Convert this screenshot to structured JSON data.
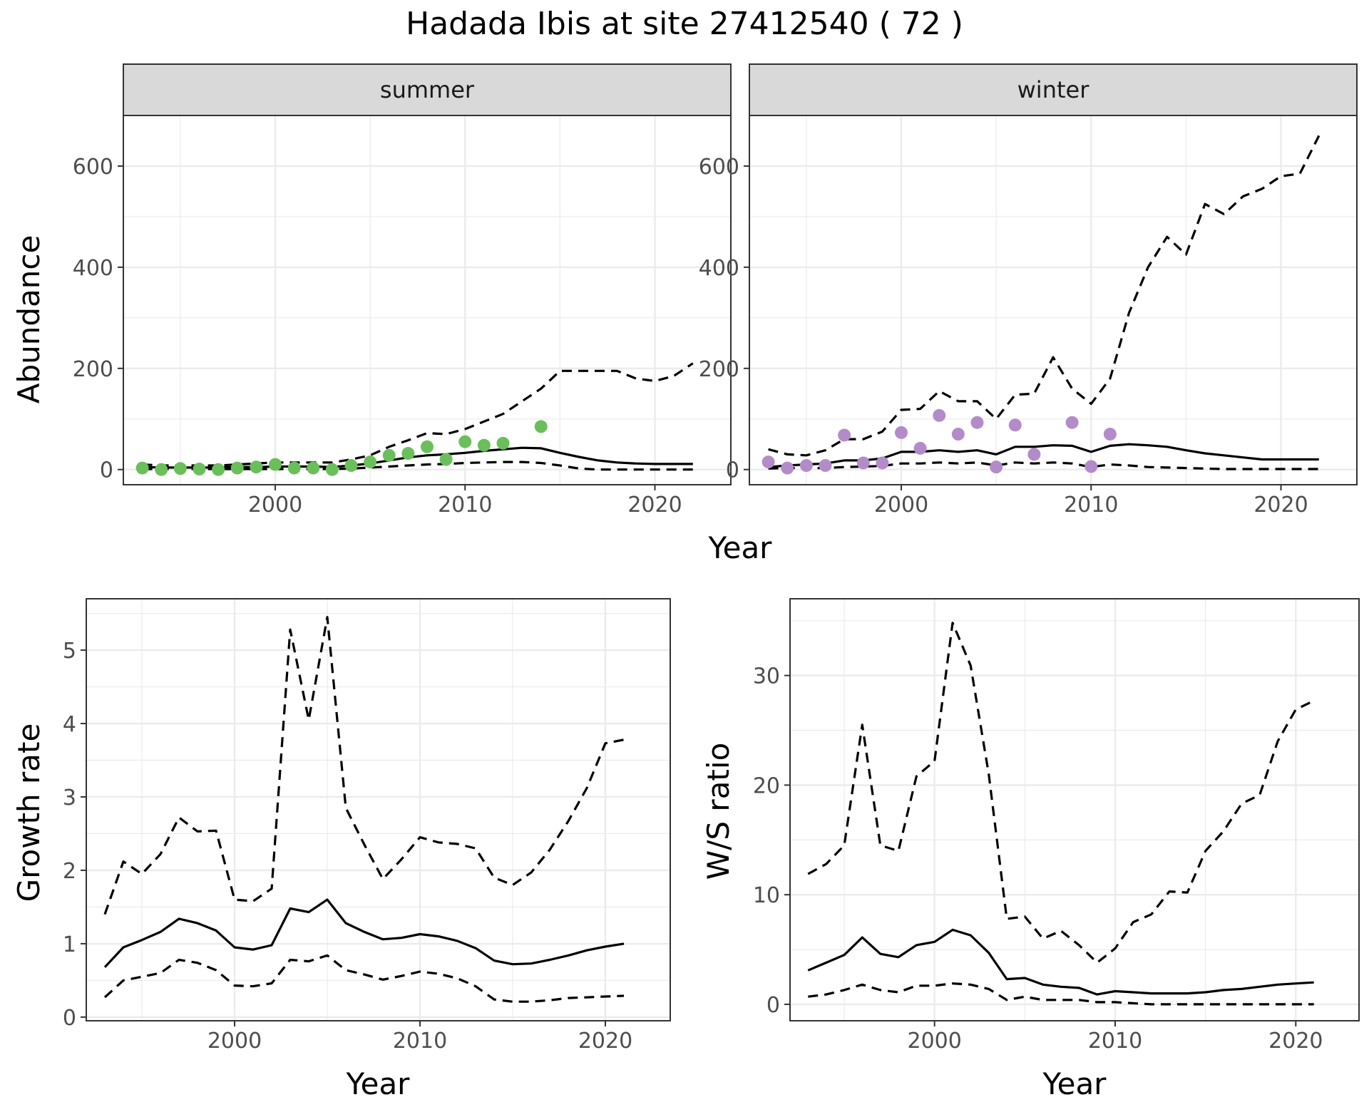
{
  "figure": {
    "title": "Hadada Ibis at site 27412540 ( 72 )"
  },
  "chart_data": [
    {
      "type": "line",
      "panel": "summer",
      "xlabel": "Year",
      "ylabel": "Abundance",
      "xlim": [
        1992,
        2024
      ],
      "ylim": [
        -30,
        700
      ],
      "x_ticks": [
        2000,
        2010,
        2020
      ],
      "y_ticks": [
        0,
        200,
        400,
        600
      ],
      "grid": true,
      "legend": "none",
      "point_color": "#6abf5a",
      "points": {
        "x": [
          1993,
          1994,
          1995,
          1996,
          1997,
          1998,
          1999,
          2000,
          2001,
          2002,
          2003,
          2004,
          2005,
          2006,
          2007,
          2008,
          2009,
          2010,
          2011,
          2012,
          2014
        ],
        "y": [
          3,
          0,
          2,
          1,
          0,
          3,
          5,
          10,
          3,
          3,
          0,
          8,
          15,
          28,
          32,
          45,
          20,
          55,
          48,
          52,
          85
        ]
      },
      "series": [
        {
          "style": "solid",
          "x": [
            1993,
            1994,
            1995,
            1996,
            1997,
            1998,
            1999,
            2000,
            2001,
            2002,
            2003,
            2004,
            2005,
            2006,
            2007,
            2008,
            2009,
            2010,
            2011,
            2012,
            2013,
            2014,
            2015,
            2016,
            2017,
            2018,
            2019,
            2020,
            2021,
            2022
          ],
          "y": [
            5,
            4,
            4,
            4,
            4,
            5,
            5,
            6,
            6,
            6,
            5,
            8,
            12,
            18,
            24,
            28,
            30,
            33,
            37,
            40,
            43,
            42,
            33,
            25,
            18,
            14,
            12,
            11,
            11,
            11
          ]
        },
        {
          "style": "dashed",
          "x": [
            1993,
            1994,
            1995,
            1996,
            1997,
            1998,
            1999,
            2000,
            2001,
            2002,
            2003,
            2004,
            2005,
            2006,
            2007,
            2008,
            2009,
            2010,
            2011,
            2012,
            2013,
            2014,
            2015,
            2016,
            2017,
            2018,
            2019,
            2020,
            2021,
            2022
          ],
          "y": [
            10,
            8,
            8,
            8,
            8,
            10,
            12,
            14,
            14,
            14,
            14,
            20,
            28,
            45,
            58,
            72,
            70,
            80,
            95,
            110,
            135,
            160,
            195,
            195,
            195,
            195,
            180,
            175,
            185,
            210
          ]
        },
        {
          "style": "dashed",
          "x": [
            1993,
            1994,
            1995,
            1996,
            1997,
            1998,
            1999,
            2000,
            2001,
            2002,
            2003,
            2004,
            2005,
            2006,
            2007,
            2008,
            2009,
            2010,
            2011,
            2012,
            2013,
            2014,
            2015,
            2016,
            2017,
            2018,
            2019,
            2020,
            2021,
            2022
          ],
          "y": [
            1,
            1,
            1,
            1,
            1,
            1,
            1,
            1,
            1,
            1,
            1,
            2,
            4,
            6,
            8,
            10,
            11,
            13,
            14,
            15,
            15,
            13,
            8,
            2,
            0,
            0,
            0,
            0,
            0,
            0
          ]
        }
      ]
    },
    {
      "type": "line",
      "panel": "winter",
      "xlabel": "Year",
      "ylabel": "Abundance",
      "xlim": [
        1992,
        2024
      ],
      "ylim": [
        -30,
        700
      ],
      "x_ticks": [
        2000,
        2010,
        2020
      ],
      "y_ticks": [
        0,
        200,
        400,
        600
      ],
      "grid": true,
      "legend": "none",
      "point_color": "#b48bc9",
      "points": {
        "x": [
          1993,
          1994,
          1995,
          1996,
          1997,
          1998,
          1999,
          2000,
          2001,
          2002,
          2003,
          2004,
          2005,
          2006,
          2007,
          2009,
          2010,
          2011
        ],
        "y": [
          15,
          3,
          8,
          8,
          68,
          13,
          13,
          73,
          42,
          107,
          70,
          93,
          5,
          88,
          30,
          93,
          6,
          70
        ]
      },
      "series": [
        {
          "style": "solid",
          "x": [
            1993,
            1994,
            1995,
            1996,
            1997,
            1998,
            1999,
            2000,
            2001,
            2002,
            2003,
            2004,
            2005,
            2006,
            2007,
            2008,
            2009,
            2010,
            2011,
            2012,
            2013,
            2014,
            2015,
            2016,
            2017,
            2018,
            2019,
            2020,
            2021,
            2022
          ],
          "y": [
            5,
            8,
            10,
            12,
            18,
            18,
            22,
            35,
            35,
            38,
            35,
            38,
            30,
            45,
            45,
            48,
            47,
            35,
            47,
            50,
            48,
            45,
            38,
            32,
            28,
            24,
            20,
            20,
            20,
            20
          ]
        },
        {
          "style": "dashed",
          "x": [
            1993,
            1994,
            1995,
            1996,
            1997,
            1998,
            1999,
            2000,
            2001,
            2002,
            2003,
            2004,
            2005,
            2006,
            2007,
            2008,
            2009,
            2010,
            2011,
            2012,
            2013,
            2014,
            2015,
            2016,
            2017,
            2018,
            2019,
            2020,
            2021,
            2022
          ],
          "y": [
            40,
            30,
            28,
            38,
            60,
            60,
            75,
            118,
            120,
            155,
            135,
            135,
            100,
            148,
            150,
            222,
            160,
            130,
            180,
            310,
            400,
            460,
            425,
            525,
            505,
            540,
            555,
            580,
            585,
            660
          ]
        },
        {
          "style": "dashed",
          "x": [
            1993,
            1994,
            1995,
            1996,
            1997,
            1998,
            1999,
            2000,
            2001,
            2002,
            2003,
            2004,
            2005,
            2006,
            2007,
            2008,
            2009,
            2010,
            2011,
            2012,
            2013,
            2014,
            2015,
            2016,
            2017,
            2018,
            2019,
            2020,
            2021,
            2022
          ],
          "y": [
            2,
            3,
            3,
            3,
            5,
            6,
            7,
            12,
            12,
            14,
            12,
            14,
            8,
            14,
            12,
            14,
            12,
            5,
            10,
            8,
            5,
            4,
            3,
            2,
            1,
            1,
            1,
            1,
            1,
            1
          ]
        }
      ]
    },
    {
      "type": "line",
      "panel": "growth",
      "xlabel": "Year",
      "ylabel": "Growth rate",
      "xlim": [
        1992,
        2023.5
      ],
      "ylim": [
        -0.05,
        5.7
      ],
      "x_ticks": [
        2000,
        2010,
        2020
      ],
      "y_ticks": [
        0,
        1,
        2,
        3,
        4,
        5
      ],
      "grid": true,
      "legend": "none",
      "series": [
        {
          "style": "solid",
          "x": [
            1993,
            1994,
            1995,
            1996,
            1997,
            1998,
            1999,
            2000,
            2001,
            2002,
            2003,
            2004,
            2005,
            2006,
            2007,
            2008,
            2009,
            2010,
            2011,
            2012,
            2013,
            2014,
            2015,
            2016,
            2017,
            2018,
            2019,
            2020,
            2021
          ],
          "y": [
            0.68,
            0.95,
            1.05,
            1.16,
            1.34,
            1.28,
            1.18,
            0.95,
            0.92,
            0.98,
            1.48,
            1.43,
            1.6,
            1.28,
            1.16,
            1.06,
            1.08,
            1.13,
            1.1,
            1.04,
            0.94,
            0.77,
            0.72,
            0.73,
            0.78,
            0.84,
            0.91,
            0.96,
            1.0
          ]
        },
        {
          "style": "dashed",
          "x": [
            1993,
            1994,
            1995,
            1996,
            1997,
            1998,
            1999,
            2000,
            2001,
            2002,
            2003,
            2004,
            2005,
            2006,
            2007,
            2008,
            2009,
            2010,
            2011,
            2012,
            2013,
            2014,
            2015,
            2016,
            2017,
            2018,
            2019,
            2020,
            2021
          ],
          "y": [
            1.4,
            2.12,
            1.95,
            2.22,
            2.72,
            2.53,
            2.54,
            1.6,
            1.58,
            1.75,
            5.28,
            4.05,
            5.45,
            2.85,
            2.35,
            1.88,
            2.15,
            2.45,
            2.38,
            2.36,
            2.3,
            1.9,
            1.8,
            1.97,
            2.28,
            2.67,
            3.12,
            3.73,
            3.78
          ]
        },
        {
          "style": "dashed",
          "x": [
            1993,
            1994,
            1995,
            1996,
            1997,
            1998,
            1999,
            2000,
            2001,
            2002,
            2003,
            2004,
            2005,
            2006,
            2007,
            2008,
            2009,
            2010,
            2011,
            2012,
            2013,
            2014,
            2015,
            2016,
            2017,
            2018,
            2019,
            2020,
            2021
          ],
          "y": [
            0.27,
            0.5,
            0.55,
            0.6,
            0.78,
            0.74,
            0.64,
            0.43,
            0.42,
            0.46,
            0.78,
            0.76,
            0.84,
            0.64,
            0.58,
            0.51,
            0.56,
            0.62,
            0.59,
            0.53,
            0.42,
            0.24,
            0.21,
            0.21,
            0.23,
            0.26,
            0.27,
            0.28,
            0.29
          ]
        }
      ]
    },
    {
      "type": "line",
      "panel": "ws-ratio",
      "xlabel": "Year",
      "ylabel": "W/S ratio",
      "xlim": [
        1992,
        2023.5
      ],
      "ylim": [
        -1.5,
        37
      ],
      "x_ticks": [
        2000,
        2010,
        2020
      ],
      "y_ticks": [
        0,
        10,
        20,
        30
      ],
      "grid": true,
      "legend": "none",
      "series": [
        {
          "style": "solid",
          "x": [
            1993,
            1994,
            1995,
            1996,
            1997,
            1998,
            1999,
            2000,
            2001,
            2002,
            2003,
            2004,
            2005,
            2006,
            2007,
            2008,
            2009,
            2010,
            2011,
            2012,
            2013,
            2014,
            2015,
            2016,
            2017,
            2018,
            2019,
            2020,
            2021
          ],
          "y": [
            3.1,
            3.8,
            4.5,
            6.1,
            4.6,
            4.3,
            5.4,
            5.7,
            6.8,
            6.3,
            4.7,
            2.3,
            2.4,
            1.8,
            1.6,
            1.5,
            0.9,
            1.2,
            1.1,
            1.0,
            1.0,
            1.0,
            1.1,
            1.3,
            1.4,
            1.6,
            1.8,
            1.9,
            2.0
          ]
        },
        {
          "style": "dashed",
          "x": [
            1993,
            1994,
            1995,
            1996,
            1997,
            1998,
            1999,
            2000,
            2001,
            2002,
            2003,
            2004,
            2005,
            2006,
            2007,
            2008,
            2009,
            2010,
            2011,
            2012,
            2013,
            2014,
            2015,
            2016,
            2017,
            2018,
            2019,
            2020,
            2021
          ],
          "y": [
            11.9,
            12.8,
            14.5,
            25.5,
            14.5,
            14.0,
            20.8,
            22.2,
            34.8,
            30.9,
            21.0,
            7.8,
            8.0,
            6.0,
            6.7,
            5.4,
            3.8,
            5.1,
            7.5,
            8.2,
            10.3,
            10.2,
            14.0,
            15.8,
            18.3,
            19.1,
            24.0,
            26.9,
            27.7
          ]
        },
        {
          "style": "dashed",
          "x": [
            1993,
            1994,
            1995,
            1996,
            1997,
            1998,
            1999,
            2000,
            2001,
            2002,
            2003,
            2004,
            2005,
            2006,
            2007,
            2008,
            2009,
            2010,
            2011,
            2012,
            2013,
            2014,
            2015,
            2016,
            2017,
            2018,
            2019,
            2020,
            2021
          ],
          "y": [
            0.7,
            0.9,
            1.3,
            1.8,
            1.3,
            1.1,
            1.7,
            1.7,
            1.9,
            1.8,
            1.4,
            0.4,
            0.7,
            0.4,
            0.4,
            0.4,
            0.2,
            0.2,
            0.1,
            0.0,
            0.0,
            0.0,
            0.0,
            0.0,
            0.0,
            0.0,
            0.0,
            0.0,
            0.0
          ]
        }
      ]
    }
  ],
  "strips": {
    "summer": "summer",
    "winter": "winter"
  },
  "axes": {
    "top_xlabel": "Year",
    "top_ylabel": "Abundance",
    "growth_xlabel": "Year",
    "growth_ylabel": "Growth rate",
    "ratio_xlabel": "Year",
    "ratio_ylabel": "W/S ratio"
  },
  "colors": {
    "line": "#000000",
    "grid": "#ebebeb",
    "strip_fill": "#d9d9d9",
    "tick_text": "#4d4d4d"
  }
}
